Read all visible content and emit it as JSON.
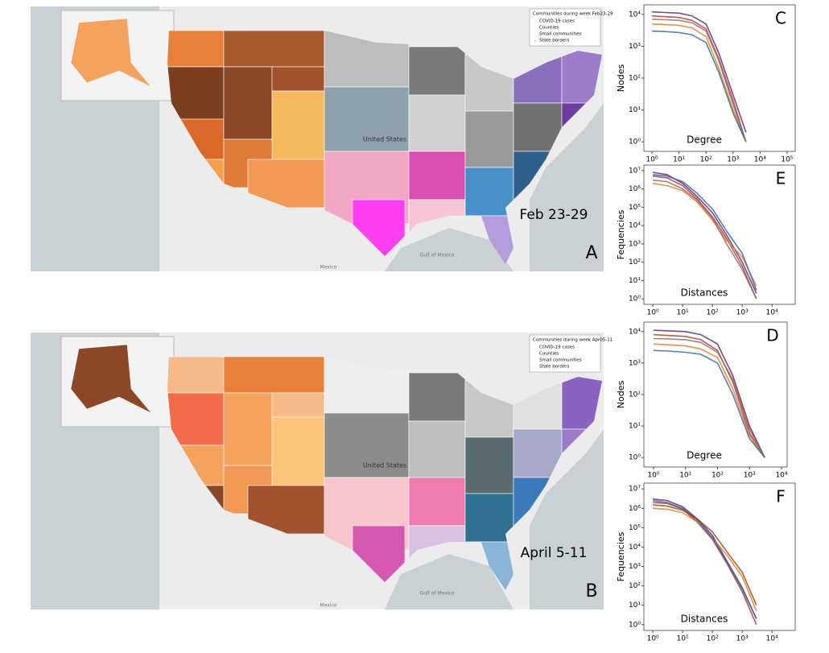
{
  "maps": [
    {
      "legend_title": "Communities during week Feb23-29",
      "legend_items": [
        "COVID-19 cases",
        "Counties",
        "Small communities",
        "State borders"
      ],
      "place_labels": [
        "United States",
        "Gulf of Mexico",
        "Mexico"
      ],
      "week_label": "Feb 23-29",
      "panel": "A"
    },
    {
      "legend_title": "Communities during week Apr05-11",
      "legend_items": [
        "COVID-19 cases",
        "Counties",
        "Small communities",
        "State borders"
      ],
      "place_labels": [
        "United States",
        "Gulf of Mexico",
        "Mexico"
      ],
      "week_label": "April 5-11",
      "panel": "B"
    }
  ],
  "chart_data": [
    {
      "type": "line",
      "panel": "C",
      "xlabel": "Degree",
      "ylabel": "Nodes",
      "log_x": true,
      "log_y": true,
      "xlim": [
        0.5,
        200000
      ],
      "ylim": [
        0.5,
        20000
      ],
      "xticks": [
        {
          "value": 1,
          "label": "10⁰"
        },
        {
          "value": 10,
          "label": "10¹"
        },
        {
          "value": 100,
          "label": "10²"
        },
        {
          "value": 1000,
          "label": "10³"
        },
        {
          "value": 10000,
          "label": "10⁴"
        },
        {
          "value": 100000,
          "label": "10⁵"
        }
      ],
      "yticks": [
        {
          "value": 1,
          "label": "10⁰"
        },
        {
          "value": 10,
          "label": "10¹"
        },
        {
          "value": 100,
          "label": "10²"
        },
        {
          "value": 1000,
          "label": "10³"
        },
        {
          "value": 10000,
          "label": "10⁴"
        }
      ],
      "x": [
        1,
        3,
        10,
        30,
        100,
        300,
        1000,
        3000
      ],
      "series": [
        {
          "color": "#5b2a86",
          "values": [
            12000,
            11500,
            11000,
            9000,
            5000,
            600,
            30,
            2
          ]
        },
        {
          "color": "#c0392b",
          "values": [
            9000,
            8500,
            8000,
            6500,
            3500,
            400,
            20,
            1
          ]
        },
        {
          "color": "#e67e22",
          "values": [
            5000,
            4800,
            4500,
            3800,
            2000,
            200,
            10,
            1
          ]
        },
        {
          "color": "#2e6da4",
          "values": [
            3000,
            2900,
            2700,
            2300,
            1300,
            150,
            8,
            1
          ]
        },
        {
          "color": "#8d6e63",
          "values": [
            7000,
            6800,
            6500,
            5500,
            3000,
            350,
            15,
            1
          ]
        }
      ]
    },
    {
      "type": "line",
      "panel": "E",
      "xlabel": "Distances",
      "ylabel": "Fequencies",
      "log_x": true,
      "log_y": true,
      "xlim": [
        0.5,
        60000
      ],
      "ylim": [
        0.5,
        20000000
      ],
      "xticks": [
        {
          "value": 1,
          "label": "10⁰"
        },
        {
          "value": 10,
          "label": "10¹"
        },
        {
          "value": 100,
          "label": "10²"
        },
        {
          "value": 1000,
          "label": "10³"
        },
        {
          "value": 10000,
          "label": "10⁴"
        }
      ],
      "yticks": [
        {
          "value": 1,
          "label": "10⁰"
        },
        {
          "value": 10,
          "label": "10¹"
        },
        {
          "value": 100,
          "label": "10²"
        },
        {
          "value": 1000,
          "label": "10³"
        },
        {
          "value": 10000,
          "label": "10⁴"
        },
        {
          "value": 100000,
          "label": "10⁵"
        },
        {
          "value": 1000000,
          "label": "10⁶"
        },
        {
          "value": 10000000,
          "label": "10⁷"
        }
      ],
      "x": [
        1,
        3,
        10,
        30,
        100,
        300,
        1000,
        3000
      ],
      "series": [
        {
          "color": "#5b2a86",
          "values": [
            8000000,
            6000000,
            2000000,
            400000,
            50000,
            3000,
            100,
            2
          ]
        },
        {
          "color": "#c0392b",
          "values": [
            5000000,
            4000000,
            1500000,
            300000,
            30000,
            2000,
            60,
            1
          ]
        },
        {
          "color": "#e67e22",
          "values": [
            2000000,
            1500000,
            800000,
            200000,
            20000,
            1500,
            200,
            5
          ]
        },
        {
          "color": "#2e6da4",
          "values": [
            6000000,
            5000000,
            2500000,
            600000,
            80000,
            5000,
            300,
            3
          ]
        },
        {
          "color": "#8d6e63",
          "values": [
            3000000,
            2500000,
            1000000,
            250000,
            25000,
            1000,
            40,
            1
          ]
        }
      ]
    },
    {
      "type": "line",
      "panel": "D",
      "xlabel": "Degree",
      "ylabel": "Nodes",
      "log_x": true,
      "log_y": true,
      "xlim": [
        0.5,
        15000
      ],
      "ylim": [
        0.5,
        20000
      ],
      "xticks": [
        {
          "value": 1,
          "label": "10⁰"
        },
        {
          "value": 10,
          "label": "10¹"
        },
        {
          "value": 100,
          "label": "10²"
        },
        {
          "value": 1000,
          "label": "10³"
        },
        {
          "value": 10000,
          "label": "10⁴"
        }
      ],
      "yticks": [
        {
          "value": 1,
          "label": "10⁰"
        },
        {
          "value": 10,
          "label": "10¹"
        },
        {
          "value": 100,
          "label": "10²"
        },
        {
          "value": 1000,
          "label": "10³"
        },
        {
          "value": 10000,
          "label": "10⁴"
        }
      ],
      "x": [
        1,
        3,
        10,
        30,
        100,
        300,
        1000,
        3000
      ],
      "series": [
        {
          "color": "#5b2a86",
          "values": [
            11000,
            10500,
            10000,
            8000,
            4000,
            400,
            10,
            1
          ]
        },
        {
          "color": "#c0392b",
          "values": [
            8000,
            7500,
            7000,
            5500,
            2500,
            250,
            6,
            1
          ]
        },
        {
          "color": "#e67e22",
          "values": [
            4000,
            3800,
            3500,
            2800,
            1500,
            150,
            5,
            1
          ]
        },
        {
          "color": "#2e6da4",
          "values": [
            2500,
            2400,
            2200,
            1900,
            1000,
            100,
            4,
            1
          ]
        },
        {
          "color": "#8d6e63",
          "values": [
            6000,
            5800,
            5500,
            4500,
            2200,
            300,
            8,
            1
          ]
        }
      ]
    },
    {
      "type": "line",
      "panel": "F",
      "xlabel": "Distances",
      "ylabel": "Fequencies",
      "log_x": true,
      "log_y": true,
      "xlim": [
        0.5,
        60000
      ],
      "ylim": [
        0.5,
        20000000
      ],
      "xticks": [
        {
          "value": 1,
          "label": "10⁰"
        },
        {
          "value": 10,
          "label": "10¹"
        },
        {
          "value": 100,
          "label": "10²"
        },
        {
          "value": 1000,
          "label": "10³"
        },
        {
          "value": 10000,
          "label": "10⁴"
        }
      ],
      "yticks": [
        {
          "value": 1,
          "label": "10⁰"
        },
        {
          "value": 10,
          "label": "10¹"
        },
        {
          "value": 100,
          "label": "10²"
        },
        {
          "value": 1000,
          "label": "10³"
        },
        {
          "value": 10000,
          "label": "10⁴"
        },
        {
          "value": 100000,
          "label": "10⁵"
        },
        {
          "value": 1000000,
          "label": "10⁶"
        },
        {
          "value": 10000000,
          "label": "10⁷"
        }
      ],
      "x": [
        1,
        3,
        10,
        30,
        100,
        300,
        1000,
        3000
      ],
      "series": [
        {
          "color": "#5b2a86",
          "values": [
            3000000,
            2500000,
            1200000,
            300000,
            40000,
            2000,
            80,
            2
          ]
        },
        {
          "color": "#c0392b",
          "values": [
            2000000,
            1800000,
            900000,
            200000,
            25000,
            1500,
            50,
            1
          ]
        },
        {
          "color": "#e67e22",
          "values": [
            1000000,
            900000,
            600000,
            200000,
            30000,
            4000,
            300,
            5
          ]
        },
        {
          "color": "#2e6da4",
          "values": [
            2500000,
            2000000,
            1000000,
            250000,
            30000,
            1800,
            70,
            2
          ]
        },
        {
          "color": "#8d4a1c",
          "values": [
            1500000,
            1300000,
            800000,
            300000,
            60000,
            6000,
            500,
            10
          ]
        }
      ]
    }
  ]
}
